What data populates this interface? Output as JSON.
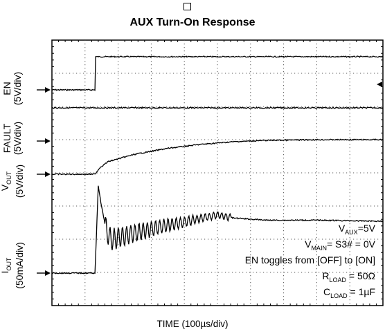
{
  "chart_data": {
    "type": "line",
    "title": "AUX Turn-On Response",
    "xlabel": "TIME (100µs/div)",
    "x_divisions": 10,
    "y_divisions": 8,
    "grid": true,
    "channel_labels": [
      {
        "name": "EN",
        "scale": "(5V/div)"
      },
      {
        "name": "FAULT",
        "scale": "(5V/div)"
      },
      {
        "name": "V",
        "sub": "OUT",
        "scale": "(5V/div)"
      },
      {
        "name": "I",
        "sub": "OUT",
        "scale": "(50mA/div)"
      }
    ],
    "series": [
      {
        "name": "EN",
        "x": [
          0,
          1.3,
          1.32,
          10
        ],
        "y": [
          0,
          0,
          1.0,
          1.0
        ]
      },
      {
        "name": "FAULT",
        "x": [
          0,
          10
        ],
        "y": [
          0,
          0
        ]
      },
      {
        "name": "VOUT",
        "x": [
          0,
          1.3,
          1.45,
          1.7,
          2.5,
          3.5,
          4.5,
          5.5,
          6.5,
          8,
          10
        ],
        "y": [
          0,
          0,
          0.2,
          0.38,
          0.6,
          0.78,
          0.9,
          0.98,
          1.02,
          1.04,
          1.04
        ]
      },
      {
        "name": "IOUT",
        "x": [
          0,
          1.3,
          1.4,
          1.5,
          1.65,
          1.8,
          2.2,
          2.7,
          3.2,
          3.8,
          4.4,
          5.0,
          5.5,
          6.5,
          8,
          10
        ],
        "y": [
          0,
          0,
          4.2,
          3.2,
          2.0,
          1.6,
          1.8,
          2.0,
          2.2,
          2.4,
          2.6,
          2.8,
          2.65,
          2.55,
          2.55,
          2.5
        ]
      }
    ],
    "annotations": [
      {
        "text": "V",
        "sub": "AUX",
        "rest": "=5V"
      },
      {
        "text": "V",
        "sub": "MAIN",
        "rest": "= S3# = 0V"
      },
      {
        "text": "EN toggles from [OFF] to [ON]",
        "sub": "",
        "rest": ""
      },
      {
        "text": "R",
        "sub": "LOAD",
        "rest": " = 50Ω"
      },
      {
        "text": "C",
        "sub": "LOAD",
        "rest": " = 1µF"
      }
    ]
  }
}
